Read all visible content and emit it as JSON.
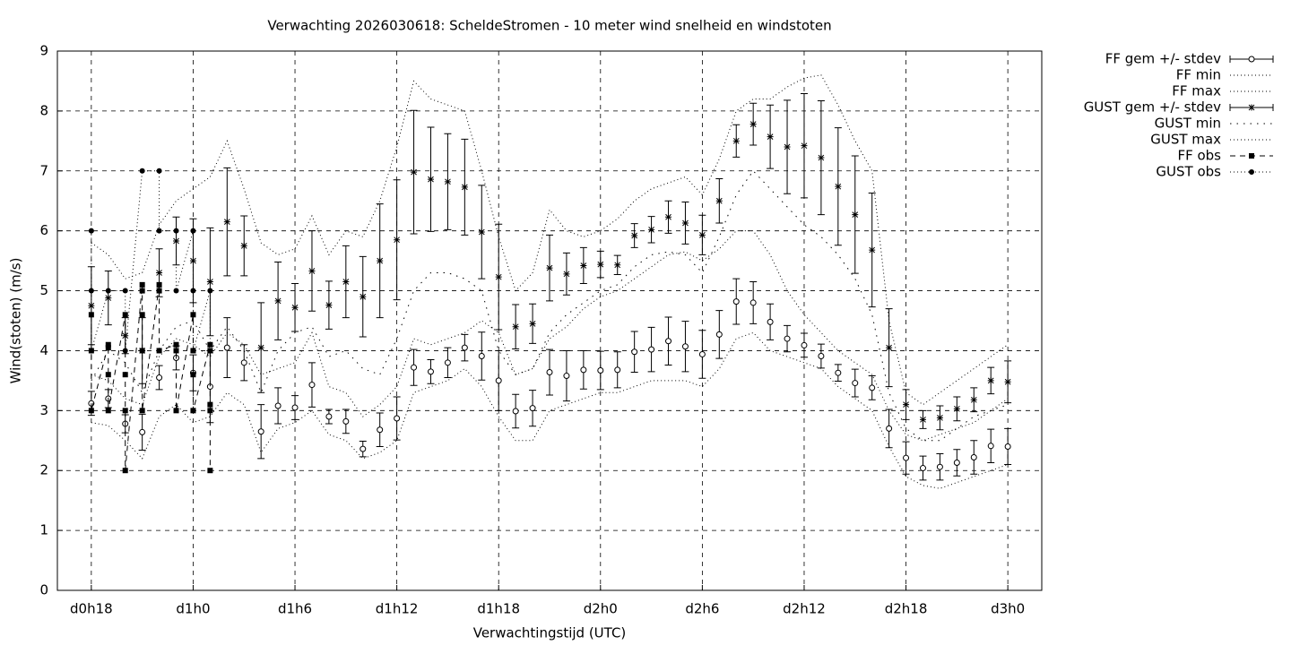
{
  "chart_data": {
    "type": "errorbar",
    "title": "Verwachting 2026030618: ScheldeStromen - 10 meter wind snelheid en windstoten",
    "xlabel": "Verwachtingstijd (UTC)",
    "ylabel": "Wind(stoten) (m/s)",
    "xlim": [
      16,
      74
    ],
    "ylim": [
      0,
      9
    ],
    "xticks": [
      {
        "value": 18,
        "label": "d0h18"
      },
      {
        "value": 24,
        "label": "d1h0"
      },
      {
        "value": 30,
        "label": "d1h6"
      },
      {
        "value": 36,
        "label": "d1h12"
      },
      {
        "value": 42,
        "label": "d1h18"
      },
      {
        "value": 48,
        "label": "d2h0"
      },
      {
        "value": 54,
        "label": "d2h6"
      },
      {
        "value": 60,
        "label": "d2h12"
      },
      {
        "value": 66,
        "label": "d2h18"
      },
      {
        "value": 72,
        "label": "d3h0"
      }
    ],
    "yticks": [
      0,
      1,
      2,
      3,
      4,
      5,
      6,
      7,
      8,
      9
    ],
    "grid": true,
    "x": [
      18,
      19,
      20,
      21,
      22,
      23,
      24,
      25,
      26,
      27,
      28,
      29,
      30,
      31,
      32,
      33,
      34,
      35,
      36,
      37,
      38,
      39,
      40,
      41,
      42,
      43,
      44,
      45,
      46,
      47,
      48,
      49,
      50,
      51,
      52,
      53,
      54,
      55,
      56,
      57,
      58,
      59,
      60,
      61,
      62,
      63,
      64,
      65,
      66,
      67,
      68,
      69,
      70,
      71,
      72
    ],
    "series": [
      {
        "name": "FF gem +/- stdev",
        "color": "#000000",
        "style": "errorbar",
        "marker": "circle",
        "values": [
          3.12,
          3.2,
          2.78,
          2.64,
          3.55,
          3.88,
          3.63,
          3.4,
          4.05,
          3.8,
          2.65,
          3.08,
          3.05,
          3.43,
          2.9,
          2.82,
          2.36,
          2.68,
          2.87,
          3.72,
          3.65,
          3.8,
          4.05,
          3.91,
          3.5,
          2.99,
          3.04,
          3.64,
          3.58,
          3.68,
          3.67,
          3.68,
          3.98,
          4.02,
          4.16,
          4.07,
          3.94,
          4.27,
          4.82,
          4.8,
          4.48,
          4.2,
          4.09,
          3.91,
          3.63,
          3.46,
          3.38,
          2.7,
          2.21,
          2.04,
          2.06,
          2.13,
          2.22,
          2.41,
          2.4
        ],
        "errors": [
          0.2,
          0.15,
          0.15,
          0.3,
          0.2,
          0.2,
          0.3,
          0.6,
          0.5,
          0.3,
          0.45,
          0.3,
          0.2,
          0.37,
          0.12,
          0.2,
          0.13,
          0.28,
          0.36,
          0.3,
          0.2,
          0.25,
          0.22,
          0.4,
          0.5,
          0.28,
          0.3,
          0.38,
          0.42,
          0.32,
          0.32,
          0.3,
          0.34,
          0.37,
          0.4,
          0.42,
          0.4,
          0.4,
          0.38,
          0.35,
          0.3,
          0.22,
          0.2,
          0.2,
          0.14,
          0.23,
          0.2,
          0.32,
          0.27,
          0.2,
          0.22,
          0.22,
          0.28,
          0.28,
          0.3
        ]
      },
      {
        "name": "FF min",
        "color": "#000000",
        "style": "line",
        "line": "dotted",
        "values": [
          2.8,
          2.75,
          2.5,
          2.2,
          2.9,
          3.1,
          2.8,
          2.9,
          3.3,
          3.1,
          2.3,
          2.7,
          2.8,
          3.0,
          2.6,
          2.5,
          2.2,
          2.3,
          2.5,
          3.3,
          3.4,
          3.5,
          3.7,
          3.4,
          2.9,
          2.5,
          2.5,
          3.0,
          3.1,
          3.2,
          3.3,
          3.3,
          3.4,
          3.5,
          3.5,
          3.5,
          3.4,
          3.7,
          4.2,
          4.3,
          4.0,
          3.9,
          3.8,
          3.7,
          3.4,
          3.2,
          3.0,
          2.4,
          1.9,
          1.75,
          1.7,
          1.8,
          1.9,
          2.0,
          2.1
        ]
      },
      {
        "name": "FF max",
        "color": "#000000",
        "style": "line",
        "line": "dotted",
        "values": [
          3.6,
          3.5,
          3.2,
          3.1,
          3.9,
          4.2,
          4.1,
          3.9,
          4.3,
          4.1,
          3.6,
          3.7,
          3.8,
          4.3,
          3.4,
          3.3,
          2.9,
          3.1,
          3.4,
          4.2,
          4.1,
          4.2,
          4.3,
          4.5,
          4.3,
          3.6,
          3.7,
          4.2,
          4.4,
          4.7,
          4.9,
          5.0,
          5.2,
          5.4,
          5.6,
          5.65,
          5.5,
          5.7,
          6.0,
          6.0,
          5.6,
          5.0,
          4.6,
          4.3,
          4.0,
          3.8,
          3.6,
          3.0,
          2.6,
          2.5,
          2.6,
          2.7,
          2.8,
          3.0,
          3.2
        ]
      },
      {
        "name": "GUST gem +/- stdev",
        "color": "#000000",
        "style": "errorbar",
        "marker": "star",
        "values": [
          4.75,
          4.88,
          4.25,
          4.0,
          5.3,
          5.83,
          5.5,
          5.15,
          6.15,
          5.75,
          4.05,
          4.83,
          4.72,
          5.33,
          4.76,
          5.15,
          4.9,
          5.5,
          5.85,
          6.98,
          6.86,
          6.82,
          6.73,
          5.98,
          5.23,
          4.4,
          4.45,
          5.38,
          5.28,
          5.42,
          5.44,
          5.43,
          5.92,
          6.02,
          6.23,
          6.13,
          5.93,
          6.5,
          7.5,
          7.78,
          7.57,
          7.4,
          7.42,
          7.22,
          6.74,
          6.27,
          5.68,
          4.05,
          3.1,
          2.85,
          2.88,
          3.03,
          3.18,
          3.5,
          3.48
        ],
        "errors": [
          0.65,
          0.45,
          0.3,
          0.55,
          0.4,
          0.4,
          0.7,
          0.9,
          0.9,
          0.5,
          0.75,
          0.65,
          0.4,
          0.67,
          0.4,
          0.6,
          0.67,
          0.95,
          1.0,
          1.03,
          0.87,
          0.8,
          0.8,
          0.78,
          0.88,
          0.37,
          0.33,
          0.55,
          0.35,
          0.3,
          0.22,
          0.16,
          0.2,
          0.22,
          0.27,
          0.35,
          0.33,
          0.37,
          0.27,
          0.35,
          0.53,
          0.78,
          0.87,
          0.95,
          0.98,
          0.98,
          0.95,
          0.65,
          0.25,
          0.15,
          0.2,
          0.2,
          0.2,
          0.22,
          0.35
        ]
      },
      {
        "name": "GUST min",
        "color": "#000000",
        "style": "line",
        "line": "sparse",
        "values": [
          3.5,
          4.0,
          3.8,
          3.3,
          4.0,
          4.4,
          4.5,
          4.0,
          4.4,
          4.0,
          3.3,
          4.0,
          4.3,
          4.4,
          3.9,
          4.0,
          3.7,
          3.6,
          4.2,
          5.0,
          5.3,
          5.3,
          5.2,
          5.0,
          4.0,
          3.6,
          3.7,
          4.3,
          4.6,
          4.8,
          5.0,
          5.1,
          5.4,
          5.6,
          5.65,
          5.6,
          5.3,
          5.9,
          6.6,
          7.0,
          6.7,
          6.4,
          6.1,
          5.9,
          5.6,
          5.2,
          4.6,
          3.3,
          2.7,
          2.5,
          2.5,
          2.7,
          2.9,
          3.0,
          3.1
        ]
      },
      {
        "name": "GUST max",
        "color": "#000000",
        "style": "line",
        "line": "dotted",
        "values": [
          5.8,
          5.6,
          5.2,
          5.3,
          6.1,
          6.5,
          6.7,
          6.9,
          7.5,
          6.7,
          5.8,
          5.6,
          5.7,
          6.25,
          5.6,
          6.0,
          5.9,
          6.5,
          7.4,
          8.5,
          8.2,
          8.1,
          8.0,
          7.0,
          5.9,
          5.0,
          5.3,
          6.35,
          6.0,
          5.9,
          6.0,
          6.2,
          6.5,
          6.7,
          6.8,
          6.9,
          6.6,
          7.2,
          8.0,
          8.2,
          8.2,
          8.4,
          8.55,
          8.6,
          8.1,
          7.5,
          7.0,
          4.5,
          3.3,
          3.1,
          3.3,
          3.5,
          3.7,
          3.9,
          4.1
        ]
      },
      {
        "name": "FF obs",
        "color": "#000000",
        "style": "points-line",
        "line": "dashed",
        "marker": "square",
        "x": [
          18,
          18,
          18,
          19,
          19,
          19,
          19,
          20,
          20,
          20,
          20,
          21,
          21,
          21,
          21,
          21,
          22,
          22,
          22,
          23,
          23,
          23,
          24,
          24,
          24,
          24,
          25,
          25,
          25,
          25,
          25
        ],
        "values": [
          4.6,
          4.0,
          3.0,
          4.1,
          4.05,
          3.6,
          3.0,
          4.6,
          3.6,
          3.0,
          2.0,
          5.1,
          5.0,
          4.6,
          4.0,
          3.0,
          5.1,
          5.0,
          4.0,
          4.1,
          4.0,
          3.0,
          4.6,
          4.0,
          3.6,
          3.0,
          4.1,
          4.0,
          3.1,
          3.0,
          2.0
        ]
      },
      {
        "name": "GUST obs",
        "color": "#000000",
        "style": "points-line",
        "line": "dotted",
        "marker": "dot",
        "x": [
          18,
          18,
          18,
          19,
          20,
          20,
          21,
          22,
          22,
          23,
          23,
          24,
          24,
          24,
          25,
          25
        ],
        "values": [
          6,
          5,
          4,
          5,
          5,
          4,
          7,
          7,
          6,
          6,
          5,
          6,
          5,
          4,
          5,
          4
        ]
      }
    ]
  }
}
